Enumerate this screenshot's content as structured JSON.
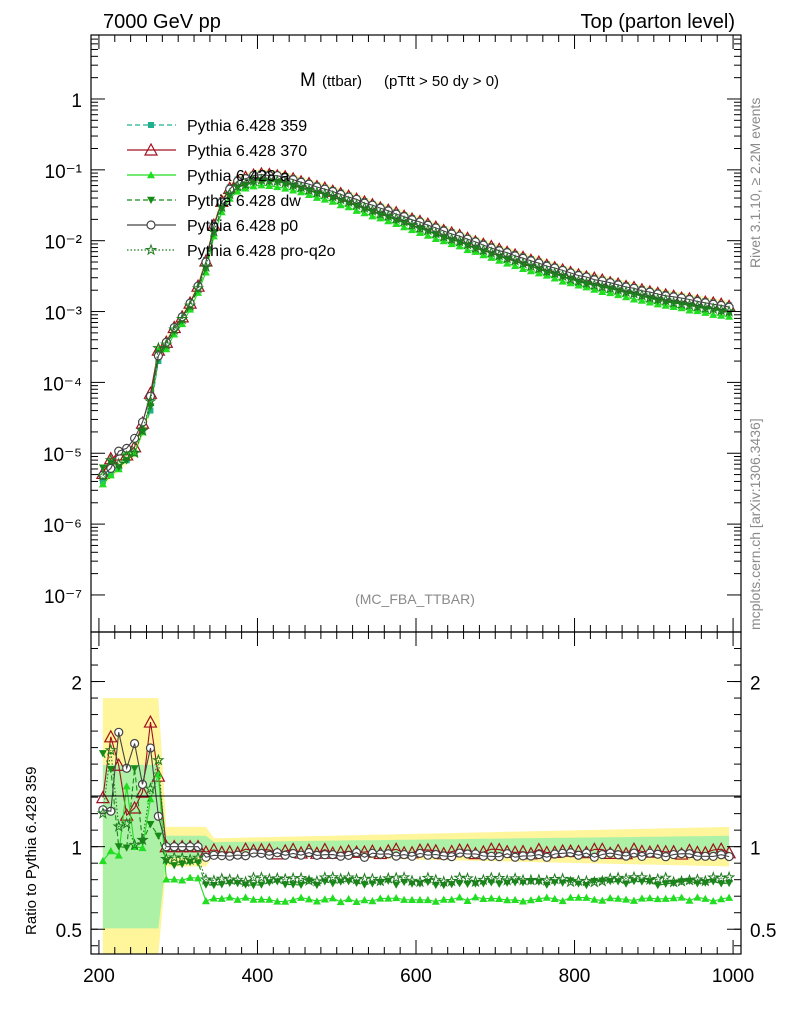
{
  "header": {
    "left": "7000 GeV pp",
    "right": "Top (parton level)"
  },
  "side_labels": {
    "rivet": "Rivet 3.1.10, ≥ 2.2M events",
    "mcplots": "mcplots.cern.ch [arXiv:1306.3436]"
  },
  "chart_data": [
    {
      "type": "line",
      "title": "M (ttbar) (pTtt > 50 dy > 0)",
      "title_main": "M",
      "title_sub": "(ttbar)",
      "title_rest": "(pTtt > 50 dy > 0)",
      "annotation": "(MC_FBA_TTBAR)",
      "xlabel": "",
      "ylabel": "",
      "yscale": "log",
      "ylim": [
        3e-08,
        8
      ],
      "xlim": [
        190,
        1010
      ],
      "yticks": [
        {
          "v": 1,
          "label": "1"
        },
        {
          "v": 0.1,
          "label": "10⁻¹"
        },
        {
          "v": 0.01,
          "label": "10⁻²"
        },
        {
          "v": 0.001,
          "label": "10⁻³"
        },
        {
          "v": 0.0001,
          "label": "10⁻⁴"
        },
        {
          "v": 1e-05,
          "label": "10⁻⁵"
        },
        {
          "v": 1e-06,
          "label": "10⁻⁶"
        },
        {
          "v": 1e-07,
          "label": "10⁻⁷"
        }
      ],
      "legend_placement": "top-left",
      "series": [
        {
          "name": "Pythia 6.428 359",
          "color": "#20b090",
          "marker": "square",
          "line": "dashed",
          "scale": 1.0
        },
        {
          "name": "Pythia 6.428 370",
          "color": "#a01020",
          "marker": "triangle-open",
          "line": "solid",
          "scale": 0.97
        },
        {
          "name": "Pythia 6.428 a",
          "color": "#22dd22",
          "marker": "triangle",
          "line": "solid",
          "scale": 0.68
        },
        {
          "name": "Pythia 6.428 dw",
          "color": "#178a17",
          "marker": "triangle-down",
          "line": "dashed",
          "scale": 0.78
        },
        {
          "name": "Pythia 6.428 p0",
          "color": "#444444",
          "marker": "circle-open",
          "line": "solid",
          "scale": 0.95
        },
        {
          "name": "Pythia 6.428 pro-q2o",
          "color": "#1f7a1f",
          "marker": "star",
          "line": "dotted",
          "scale": 0.8
        }
      ],
      "reference_points": [
        {
          "x": 205,
          "y": 4e-06
        },
        {
          "x": 245,
          "y": 1e-05
        },
        {
          "x": 265,
          "y": 4e-05
        },
        {
          "x": 275,
          "y": 0.0002
        },
        {
          "x": 290,
          "y": 0.0005
        },
        {
          "x": 310,
          "y": 0.001
        },
        {
          "x": 330,
          "y": 0.003
        },
        {
          "x": 350,
          "y": 0.03
        },
        {
          "x": 370,
          "y": 0.07
        },
        {
          "x": 400,
          "y": 0.09
        },
        {
          "x": 430,
          "y": 0.085
        },
        {
          "x": 500,
          "y": 0.05
        },
        {
          "x": 600,
          "y": 0.02
        },
        {
          "x": 700,
          "y": 0.008
        },
        {
          "x": 800,
          "y": 0.0035
        },
        {
          "x": 900,
          "y": 0.0019
        },
        {
          "x": 1000,
          "y": 0.0012
        }
      ]
    },
    {
      "type": "line",
      "title": "",
      "ylabel": "Ratio to Pythia 6.428 359",
      "xlabel": "",
      "ylim": [
        0.35,
        2.3
      ],
      "xlim": [
        190,
        1010
      ],
      "xticks": [
        200,
        400,
        600,
        800,
        1000
      ],
      "yticks": [
        {
          "v": 0.5,
          "label": "0.5"
        },
        {
          "v": 1,
          "label": "1"
        },
        {
          "v": 2,
          "label": "2"
        }
      ],
      "ratio_levels": [
        {
          "series": "Pythia 6.428 359",
          "value": 1.0
        },
        {
          "series": "Pythia 6.428 370",
          "value": 0.97
        },
        {
          "series": "Pythia 6.428 a",
          "value": 0.68
        },
        {
          "series": "Pythia 6.428 dw",
          "value": 0.78
        },
        {
          "series": "Pythia 6.428 p0",
          "value": 0.95
        },
        {
          "series": "Pythia 6.428 pro-q2o",
          "value": 0.8
        }
      ]
    }
  ]
}
